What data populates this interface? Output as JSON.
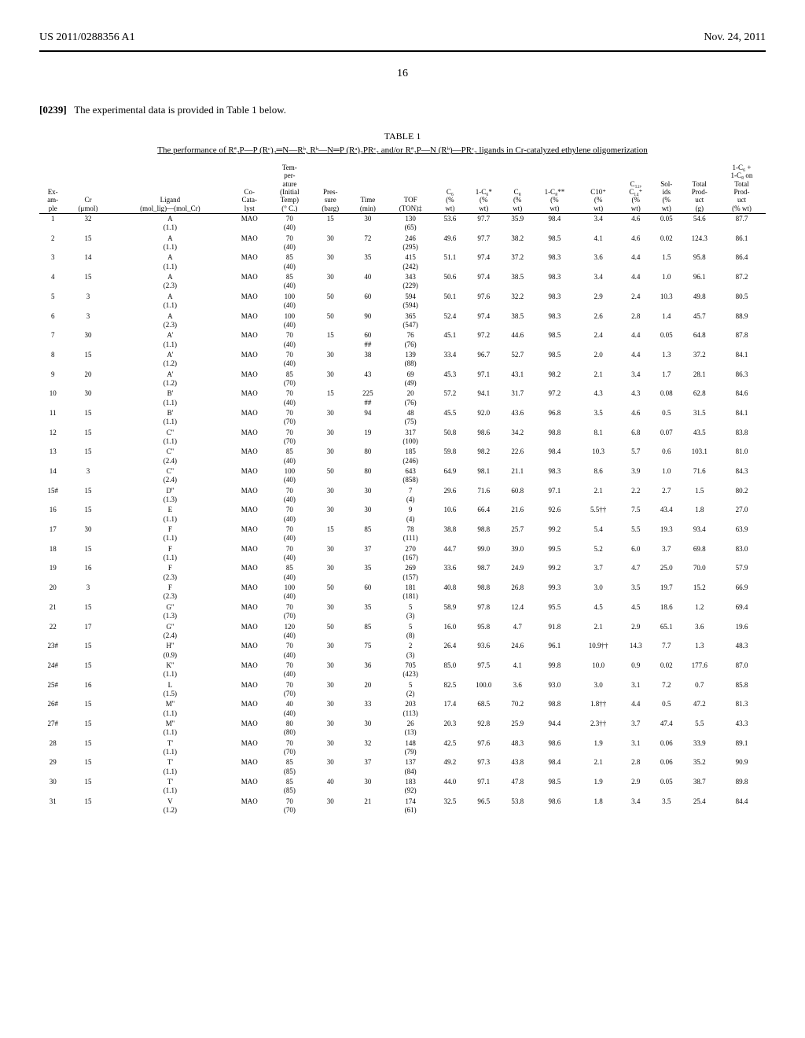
{
  "header": {
    "left": "US 2011/0288356 A1",
    "right": "Nov. 24, 2011",
    "page": "16"
  },
  "paragraph": {
    "num": "[0239]",
    "text": "The experimental data is provided in Table 1 below."
  },
  "table": {
    "title": "TABLE 1",
    "caption": "The performance of Rª₂P—P (Rᶜ)₂═N—Rᵇ, Rᵇ—N═P (Rᵃ)₂PRᶜ₂ and/or Rª₂P—N (Rᵇ)—PRᶜ₂ ligands in Cr-catalyzed ethylene oligomerization",
    "columns": [
      "Ex-\nam-\nple",
      "Cr\n(μmol)",
      "Ligand\n(mol_lig)—(mol_Cr)",
      "Co-\nCata-\nlyst",
      "Tem-\nper-\nature\n(Initial\nTemp)\n(° C.)",
      "Pres-\nsure\n(barg)",
      "Time\n(min)",
      "TOF\n(TON)‡",
      "C₆\n(%\nwt)",
      "1-C₆*\n(%\nwt)",
      "C₈\n(%\nwt)",
      "1-C₈**\n(%\nwt)",
      "C10⁺\n(%\nwt)",
      "C₁₂,\nC₁₄⁺\n(%\nwt)",
      "Sol-\nids\n(%\nwt)",
      "Total\nProd-\nuct\n(g)",
      "1-C₆ +\n1-C₈ on\nTotal\nProd-\nuct\n(% wt)"
    ],
    "rows": [
      {
        "ex": "1",
        "cr": "32",
        "lig": "A",
        "ligs": "(1.1)",
        "cat": "MAO",
        "temp": "70",
        "temps": "(40)",
        "pres": "15",
        "time": "30",
        "tof": "130",
        "tofs": "(65)",
        "c6": "53.6",
        "c61": "97.7",
        "c8": "35.9",
        "c81": "98.4",
        "c10": "3.4",
        "c12": "4.6",
        "sol": "0.05",
        "tot": "54.6",
        "final": "87.7"
      },
      {
        "ex": "2",
        "cr": "15",
        "lig": "A",
        "ligs": "(1.1)",
        "cat": "MAO",
        "temp": "70",
        "temps": "(40)",
        "pres": "30",
        "time": "72",
        "tof": "246",
        "tofs": "(295)",
        "c6": "49.6",
        "c61": "97.7",
        "c8": "38.2",
        "c81": "98.5",
        "c10": "4.1",
        "c12": "4.6",
        "sol": "0.02",
        "tot": "124.3",
        "final": "86.1"
      },
      {
        "ex": "3",
        "cr": "14",
        "lig": "A",
        "ligs": "(1.1)",
        "cat": "MAO",
        "temp": "85",
        "temps": "(40)",
        "pres": "30",
        "time": "35",
        "tof": "415",
        "tofs": "(242)",
        "c6": "51.1",
        "c61": "97.4",
        "c8": "37.2",
        "c81": "98.3",
        "c10": "3.6",
        "c12": "4.4",
        "sol": "1.5",
        "tot": "95.8",
        "final": "86.4"
      },
      {
        "ex": "4",
        "cr": "15",
        "lig": "A",
        "ligs": "(2.3)",
        "cat": "MAO",
        "temp": "85",
        "temps": "(40)",
        "pres": "30",
        "time": "40",
        "tof": "343",
        "tofs": "(229)",
        "c6": "50.6",
        "c61": "97.4",
        "c8": "38.5",
        "c81": "98.3",
        "c10": "3.4",
        "c12": "4.4",
        "sol": "1.0",
        "tot": "96.1",
        "final": "87.2"
      },
      {
        "ex": "5",
        "cr": "3",
        "lig": "A",
        "ligs": "(1.1)",
        "cat": "MAO",
        "temp": "100",
        "temps": "(40)",
        "pres": "50",
        "time": "60",
        "tof": "594",
        "tofs": "(594)",
        "c6": "50.1",
        "c61": "97.6",
        "c8": "32.2",
        "c81": "98.3",
        "c10": "2.9",
        "c12": "2.4",
        "sol": "10.3",
        "tot": "49.8",
        "final": "80.5"
      },
      {
        "ex": "6",
        "cr": "3",
        "lig": "A",
        "ligs": "(2.3)",
        "cat": "MAO",
        "temp": "100",
        "temps": "(40)",
        "pres": "50",
        "time": "90",
        "tof": "365",
        "tofs": "(547)",
        "c6": "52.4",
        "c61": "97.4",
        "c8": "38.5",
        "c81": "98.3",
        "c10": "2.6",
        "c12": "2.8",
        "sol": "1.4",
        "tot": "45.7",
        "final": "88.9"
      },
      {
        "ex": "7",
        "cr": "30",
        "lig": "A'",
        "ligs": "(1.1)",
        "cat": "MAO",
        "temp": "70",
        "temps": "(40)",
        "pres": "15",
        "time": "60\n##",
        "tof": "76",
        "tofs": "(76)",
        "c6": "45.1",
        "c61": "97.2",
        "c8": "44.6",
        "c81": "98.5",
        "c10": "2.4",
        "c12": "4.4",
        "sol": "0.05",
        "tot": "64.8",
        "final": "87.8"
      },
      {
        "ex": "8",
        "cr": "15",
        "lig": "A'",
        "ligs": "(1.2)",
        "cat": "MAO",
        "temp": "70",
        "temps": "(40)",
        "pres": "30",
        "time": "38",
        "tof": "139",
        "tofs": "(88)",
        "c6": "33.4",
        "c61": "96.7",
        "c8": "52.7",
        "c81": "98.5",
        "c10": "2.0",
        "c12": "4.4",
        "sol": "1.3",
        "tot": "37.2",
        "final": "84.1"
      },
      {
        "ex": "9",
        "cr": "20",
        "lig": "A'",
        "ligs": "(1.2)",
        "cat": "MAO",
        "temp": "85",
        "temps": "(70)",
        "pres": "30",
        "time": "43",
        "tof": "69",
        "tofs": "(49)",
        "c6": "45.3",
        "c61": "97.1",
        "c8": "43.1",
        "c81": "98.2",
        "c10": "2.1",
        "c12": "3.4",
        "sol": "1.7",
        "tot": "28.1",
        "final": "86.3"
      },
      {
        "ex": "10",
        "cr": "30",
        "lig": "B'",
        "ligs": "(1.1)",
        "cat": "MAO",
        "temp": "70",
        "temps": "(40)",
        "pres": "15",
        "time": "225\n##",
        "tof": "20",
        "tofs": "(76)",
        "c6": "57.2",
        "c61": "94.1",
        "c8": "31.7",
        "c81": "97.2",
        "c10": "4.3",
        "c12": "4.3",
        "sol": "0.08",
        "tot": "62.8",
        "final": "84.6"
      },
      {
        "ex": "11",
        "cr": "15",
        "lig": "B'",
        "ligs": "(1.1)",
        "cat": "MAO",
        "temp": "70",
        "temps": "(70)",
        "pres": "30",
        "time": "94",
        "tof": "48",
        "tofs": "(75)",
        "c6": "45.5",
        "c61": "92.0",
        "c8": "43.6",
        "c81": "96.8",
        "c10": "3.5",
        "c12": "4.6",
        "sol": "0.5",
        "tot": "31.5",
        "final": "84.1"
      },
      {
        "ex": "12",
        "cr": "15",
        "lig": "C''",
        "ligs": "(1.1)",
        "cat": "MAO",
        "temp": "70",
        "temps": "(70)",
        "pres": "30",
        "time": "19",
        "tof": "317",
        "tofs": "(100)",
        "c6": "50.8",
        "c61": "98.6",
        "c8": "34.2",
        "c81": "98.8",
        "c10": "8.1",
        "c12": "6.8",
        "sol": "0.07",
        "tot": "43.5",
        "final": "83.8"
      },
      {
        "ex": "13",
        "cr": "15",
        "lig": "C''",
        "ligs": "(2.4)",
        "cat": "MAO",
        "temp": "85",
        "temps": "(40)",
        "pres": "30",
        "time": "80",
        "tof": "185",
        "tofs": "(246)",
        "c6": "59.8",
        "c61": "98.2",
        "c8": "22.6",
        "c81": "98.4",
        "c10": "10.3",
        "c12": "5.7",
        "sol": "0.6",
        "tot": "103.1",
        "final": "81.0"
      },
      {
        "ex": "14",
        "cr": "3",
        "lig": "C''",
        "ligs": "(2.4)",
        "cat": "MAO",
        "temp": "100",
        "temps": "(40)",
        "pres": "50",
        "time": "80",
        "tof": "643",
        "tofs": "(858)",
        "c6": "64.9",
        "c61": "98.1",
        "c8": "21.1",
        "c81": "98.3",
        "c10": "8.6",
        "c12": "3.9",
        "sol": "1.0",
        "tot": "71.6",
        "final": "84.3"
      },
      {
        "ex": "15#",
        "cr": "15",
        "lig": "D''",
        "ligs": "(1.3)",
        "cat": "MAO",
        "temp": "70",
        "temps": "(40)",
        "pres": "30",
        "time": "30",
        "tof": "7",
        "tofs": "(4)",
        "c6": "29.6",
        "c61": "71.6",
        "c8": "60.8",
        "c81": "97.1",
        "c10": "2.1",
        "c12": "2.2",
        "sol": "2.7",
        "tot": "1.5",
        "final": "80.2"
      },
      {
        "ex": "16",
        "cr": "15",
        "lig": "E",
        "ligs": "(1.1)",
        "cat": "MAO",
        "temp": "70",
        "temps": "(40)",
        "pres": "30",
        "time": "30",
        "tof": "9",
        "tofs": "(4)",
        "c6": "10.6",
        "c61": "66.4",
        "c8": "21.6",
        "c81": "92.6",
        "c10": "5.5††",
        "c12": "7.5",
        "sol": "43.4",
        "tot": "1.8",
        "final": "27.0"
      },
      {
        "ex": "17",
        "cr": "30",
        "lig": "F",
        "ligs": "(1.1)",
        "cat": "MAO",
        "temp": "70",
        "temps": "(40)",
        "pres": "15",
        "time": "85",
        "tof": "78",
        "tofs": "(111)",
        "c6": "38.8",
        "c61": "98.8",
        "c8": "25.7",
        "c81": "99.2",
        "c10": "5.4",
        "c12": "5.5",
        "sol": "19.3",
        "tot": "93.4",
        "final": "63.9"
      },
      {
        "ex": "18",
        "cr": "15",
        "lig": "F",
        "ligs": "(1.1)",
        "cat": "MAO",
        "temp": "70",
        "temps": "(40)",
        "pres": "30",
        "time": "37",
        "tof": "270",
        "tofs": "(167)",
        "c6": "44.7",
        "c61": "99.0",
        "c8": "39.0",
        "c81": "99.5",
        "c10": "5.2",
        "c12": "6.0",
        "sol": "3.7",
        "tot": "69.8",
        "final": "83.0"
      },
      {
        "ex": "19",
        "cr": "16",
        "lig": "F",
        "ligs": "(2.3)",
        "cat": "MAO",
        "temp": "85",
        "temps": "(40)",
        "pres": "30",
        "time": "35",
        "tof": "269",
        "tofs": "(157)",
        "c6": "33.6",
        "c61": "98.7",
        "c8": "24.9",
        "c81": "99.2",
        "c10": "3.7",
        "c12": "4.7",
        "sol": "25.0",
        "tot": "70.0",
        "final": "57.9"
      },
      {
        "ex": "20",
        "cr": "3",
        "lig": "F",
        "ligs": "(2.3)",
        "cat": "MAO",
        "temp": "100",
        "temps": "(40)",
        "pres": "50",
        "time": "60",
        "tof": "181",
        "tofs": "(181)",
        "c6": "40.8",
        "c61": "98.8",
        "c8": "26.8",
        "c81": "99.3",
        "c10": "3.0",
        "c12": "3.5",
        "sol": "19.7",
        "tot": "15.2",
        "final": "66.9"
      },
      {
        "ex": "21",
        "cr": "15",
        "lig": "G''",
        "ligs": "(1.3)",
        "cat": "MAO",
        "temp": "70",
        "temps": "(70)",
        "pres": "30",
        "time": "35",
        "tof": "5",
        "tofs": "(3)",
        "c6": "58.9",
        "c61": "97.8",
        "c8": "12.4",
        "c81": "95.5",
        "c10": "4.5",
        "c12": "4.5",
        "sol": "18.6",
        "tot": "1.2",
        "final": "69.4"
      },
      {
        "ex": "22",
        "cr": "17",
        "lig": "G''",
        "ligs": "(2.4)",
        "cat": "MAO",
        "temp": "120",
        "temps": "(40)",
        "pres": "50",
        "time": "85",
        "tof": "5",
        "tofs": "(8)",
        "c6": "16.0",
        "c61": "95.8",
        "c8": "4.7",
        "c81": "91.8",
        "c10": "2.1",
        "c12": "2.9",
        "sol": "65.1",
        "tot": "3.6",
        "final": "19.6"
      },
      {
        "ex": "23#",
        "cr": "15",
        "lig": "H''",
        "ligs": "(0.9)",
        "cat": "MAO",
        "temp": "70",
        "temps": "(40)",
        "pres": "30",
        "time": "75",
        "tof": "2",
        "tofs": "(3)",
        "c6": "26.4",
        "c61": "93.6",
        "c8": "24.6",
        "c81": "96.1",
        "c10": "10.9††",
        "c12": "14.3",
        "sol": "7.7",
        "tot": "1.3",
        "final": "48.3"
      },
      {
        "ex": "24#",
        "cr": "15",
        "lig": "K''",
        "ligs": "(1.1)",
        "cat": "MAO",
        "temp": "70",
        "temps": "(40)",
        "pres": "30",
        "time": "36",
        "tof": "705",
        "tofs": "(423)",
        "c6": "85.0",
        "c61": "97.5",
        "c8": "4.1",
        "c81": "99.8",
        "c10": "10.0",
        "c12": "0.9",
        "sol": "0.02",
        "tot": "177.6",
        "final": "87.0"
      },
      {
        "ex": "25#",
        "cr": "16",
        "lig": "L",
        "ligs": "(1.5)",
        "cat": "MAO",
        "temp": "70",
        "temps": "(70)",
        "pres": "30",
        "time": "20",
        "tof": "5",
        "tofs": "(2)",
        "c6": "82.5",
        "c61": "100.0",
        "c8": "3.6",
        "c81": "93.0",
        "c10": "3.0",
        "c12": "3.1",
        "sol": "7.2",
        "tot": "0.7",
        "final": "85.8"
      },
      {
        "ex": "26#",
        "cr": "15",
        "lig": "M''",
        "ligs": "(1.1)",
        "cat": "MAO",
        "temp": "40",
        "temps": "(40)",
        "pres": "30",
        "time": "33",
        "tof": "203",
        "tofs": "(113)",
        "c6": "17.4",
        "c61": "68.5",
        "c8": "70.2",
        "c81": "98.8",
        "c10": "1.8††",
        "c12": "4.4",
        "sol": "0.5",
        "tot": "47.2",
        "final": "81.3"
      },
      {
        "ex": "27#",
        "cr": "15",
        "lig": "M''",
        "ligs": "(1.1)",
        "cat": "MAO",
        "temp": "80",
        "temps": "(80)",
        "pres": "30",
        "time": "30",
        "tof": "26",
        "tofs": "(13)",
        "c6": "20.3",
        "c61": "92.8",
        "c8": "25.9",
        "c81": "94.4",
        "c10": "2.3††",
        "c12": "3.7",
        "sol": "47.4",
        "tot": "5.5",
        "final": "43.3"
      },
      {
        "ex": "28",
        "cr": "15",
        "lig": "T'",
        "ligs": "(1.1)",
        "cat": "MAO",
        "temp": "70",
        "temps": "(70)",
        "pres": "30",
        "time": "32",
        "tof": "148",
        "tofs": "(79)",
        "c6": "42.5",
        "c61": "97.6",
        "c8": "48.3",
        "c81": "98.6",
        "c10": "1.9",
        "c12": "3.1",
        "sol": "0.06",
        "tot": "33.9",
        "final": "89.1"
      },
      {
        "ex": "29",
        "cr": "15",
        "lig": "T'",
        "ligs": "(1.1)",
        "cat": "MAO",
        "temp": "85",
        "temps": "(85)",
        "pres": "30",
        "time": "37",
        "tof": "137",
        "tofs": "(84)",
        "c6": "49.2",
        "c61": "97.3",
        "c8": "43.8",
        "c81": "98.4",
        "c10": "2.1",
        "c12": "2.8",
        "sol": "0.06",
        "tot": "35.2",
        "final": "90.9"
      },
      {
        "ex": "30",
        "cr": "15",
        "lig": "T'",
        "ligs": "(1.1)",
        "cat": "MAO",
        "temp": "85",
        "temps": "(85)",
        "pres": "40",
        "time": "30",
        "tof": "183",
        "tofs": "(92)",
        "c6": "44.0",
        "c61": "97.1",
        "c8": "47.8",
        "c81": "98.5",
        "c10": "1.9",
        "c12": "2.9",
        "sol": "0.05",
        "tot": "38.7",
        "final": "89.8"
      },
      {
        "ex": "31",
        "cr": "15",
        "lig": "V",
        "ligs": "(1.2)",
        "cat": "MAO",
        "temp": "70",
        "temps": "(70)",
        "pres": "30",
        "time": "21",
        "tof": "174",
        "tofs": "(61)",
        "c6": "32.5",
        "c61": "96.5",
        "c8": "53.8",
        "c81": "98.6",
        "c10": "1.8",
        "c12": "3.4",
        "sol": "3.5",
        "tot": "25.4",
        "final": "84.4"
      }
    ]
  }
}
